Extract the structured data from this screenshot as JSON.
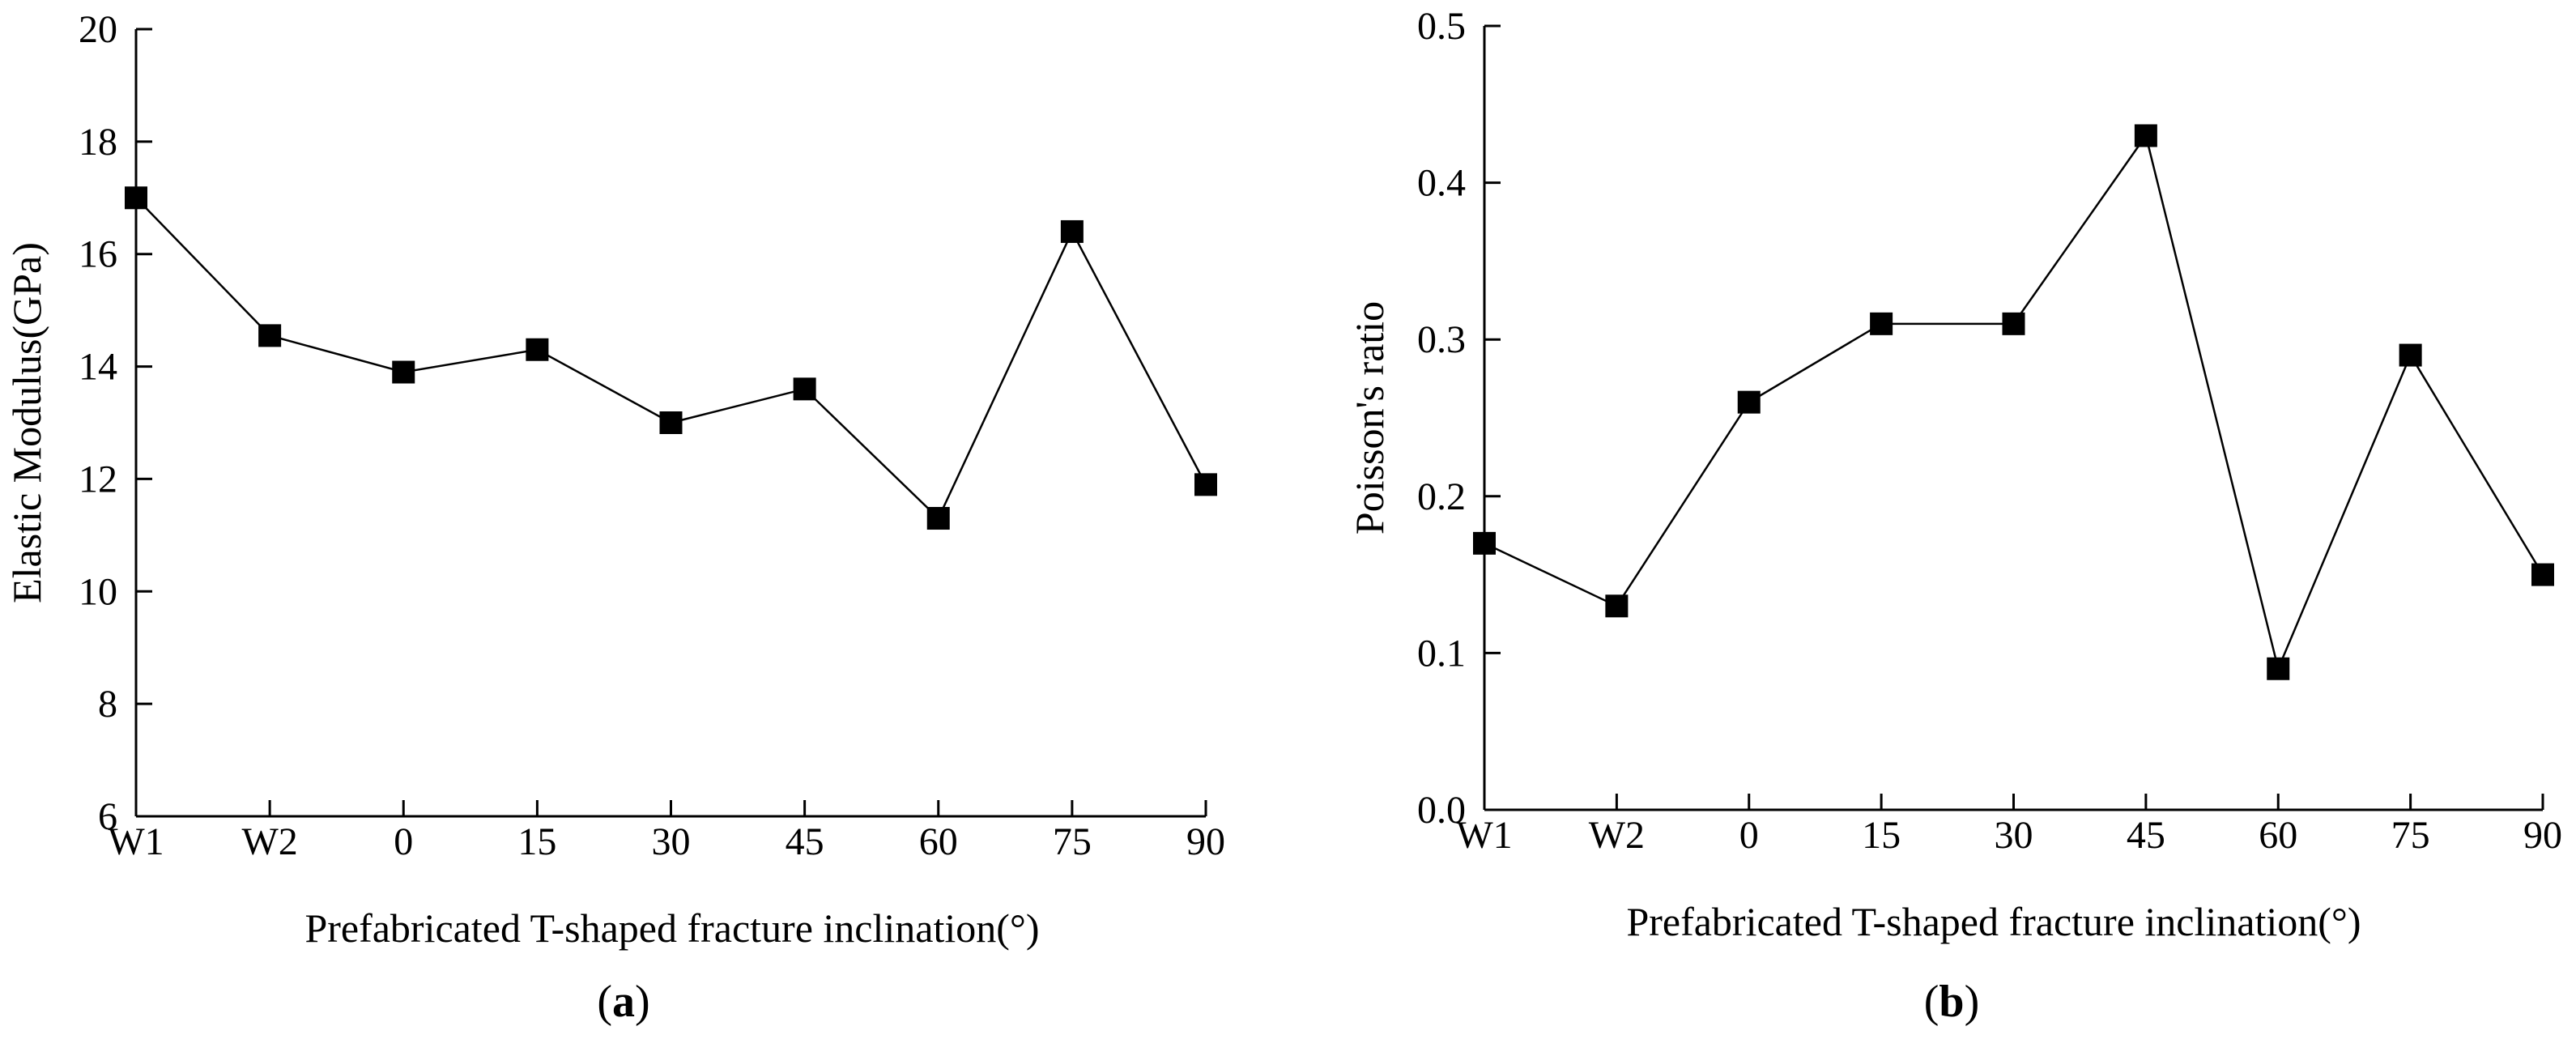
{
  "chart_data": [
    {
      "type": "line",
      "panel_label": "a",
      "categories": [
        "W1",
        "W2",
        "0",
        "15",
        "30",
        "45",
        "60",
        "75",
        "90"
      ],
      "values": [
        17.0,
        14.55,
        13.9,
        14.3,
        13.0,
        13.6,
        11.3,
        16.4,
        11.9
      ],
      "xlabel": "Prefabricated T-shaped fracture inclination(°)",
      "ylabel": "Elastic Modulus(GPa)",
      "ylim": [
        6,
        20
      ],
      "yticks": [
        6,
        8,
        10,
        12,
        14,
        16,
        18,
        20
      ],
      "ytick_labels": [
        "6",
        "8",
        "10",
        "12",
        "14",
        "16",
        "18",
        "20"
      ],
      "marker": "square",
      "grid": false,
      "legend": "none"
    },
    {
      "type": "line",
      "panel_label": "b",
      "categories": [
        "W1",
        "W2",
        "0",
        "15",
        "30",
        "45",
        "60",
        "75",
        "90"
      ],
      "values": [
        0.17,
        0.13,
        0.26,
        0.31,
        0.31,
        0.43,
        0.09,
        0.29,
        0.15
      ],
      "xlabel": "Prefabricated T-shaped fracture inclination(°)",
      "ylabel": "Poisson's ratio",
      "ylim": [
        0.0,
        0.5
      ],
      "yticks": [
        0.0,
        0.1,
        0.2,
        0.3,
        0.4,
        0.5
      ],
      "ytick_labels": [
        "0.0",
        "0.1",
        "0.2",
        "0.3",
        "0.4",
        "0.5"
      ],
      "marker": "square",
      "grid": false,
      "legend": "none"
    }
  ],
  "colors": {
    "line": "#000000",
    "marker": "#000000",
    "background": "#ffffff"
  }
}
